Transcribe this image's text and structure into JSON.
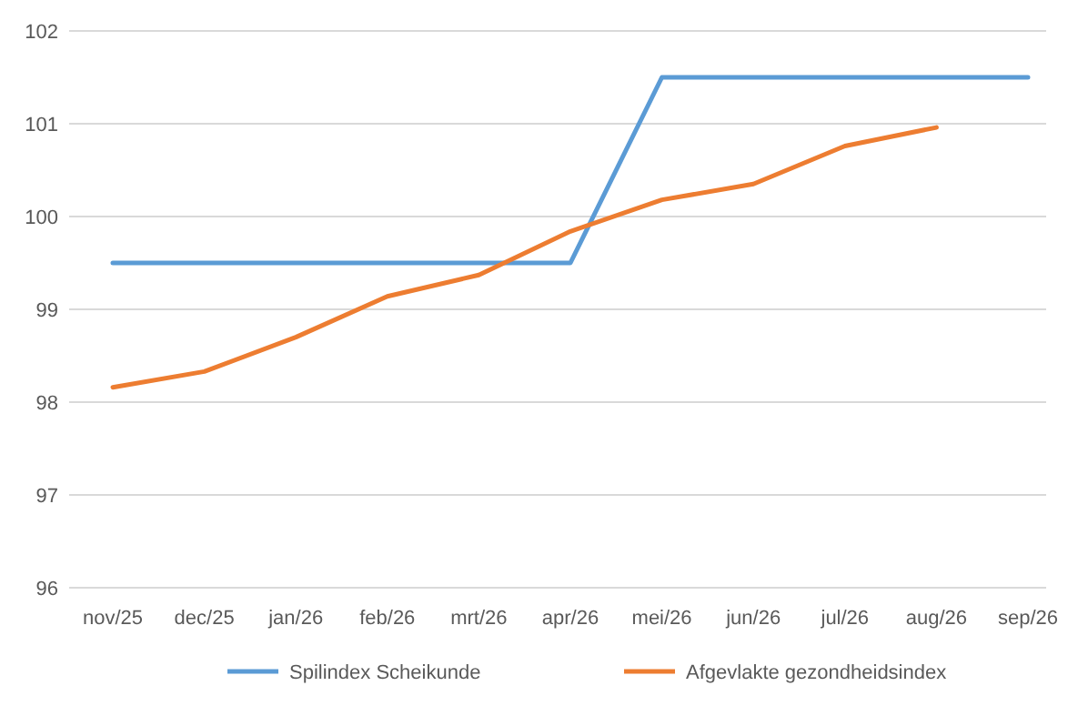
{
  "chart_data": {
    "type": "line",
    "categories": [
      "nov/25",
      "dec/25",
      "jan/26",
      "feb/26",
      "mrt/26",
      "apr/26",
      "mei/26",
      "jun/26",
      "jul/26",
      "aug/26",
      "sep/26"
    ],
    "series": [
      {
        "name": "Spilindex Scheikunde",
        "color": "#5b9bd5",
        "values": [
          99.5,
          99.5,
          99.5,
          99.5,
          99.5,
          99.5,
          101.5,
          101.5,
          101.5,
          101.5,
          101.5
        ]
      },
      {
        "name": "Afgevlakte gezondheidsindex",
        "color": "#ed7d31",
        "values": [
          98.16,
          98.33,
          98.7,
          99.14,
          99.37,
          99.84,
          100.18,
          100.35,
          100.76,
          100.96,
          null
        ]
      }
    ],
    "ylim": [
      96,
      102
    ],
    "yticks": [
      96,
      97,
      98,
      99,
      100,
      101,
      102
    ],
    "grid": "y",
    "legend": "bottom",
    "marker": "none",
    "line_style": "solid"
  }
}
